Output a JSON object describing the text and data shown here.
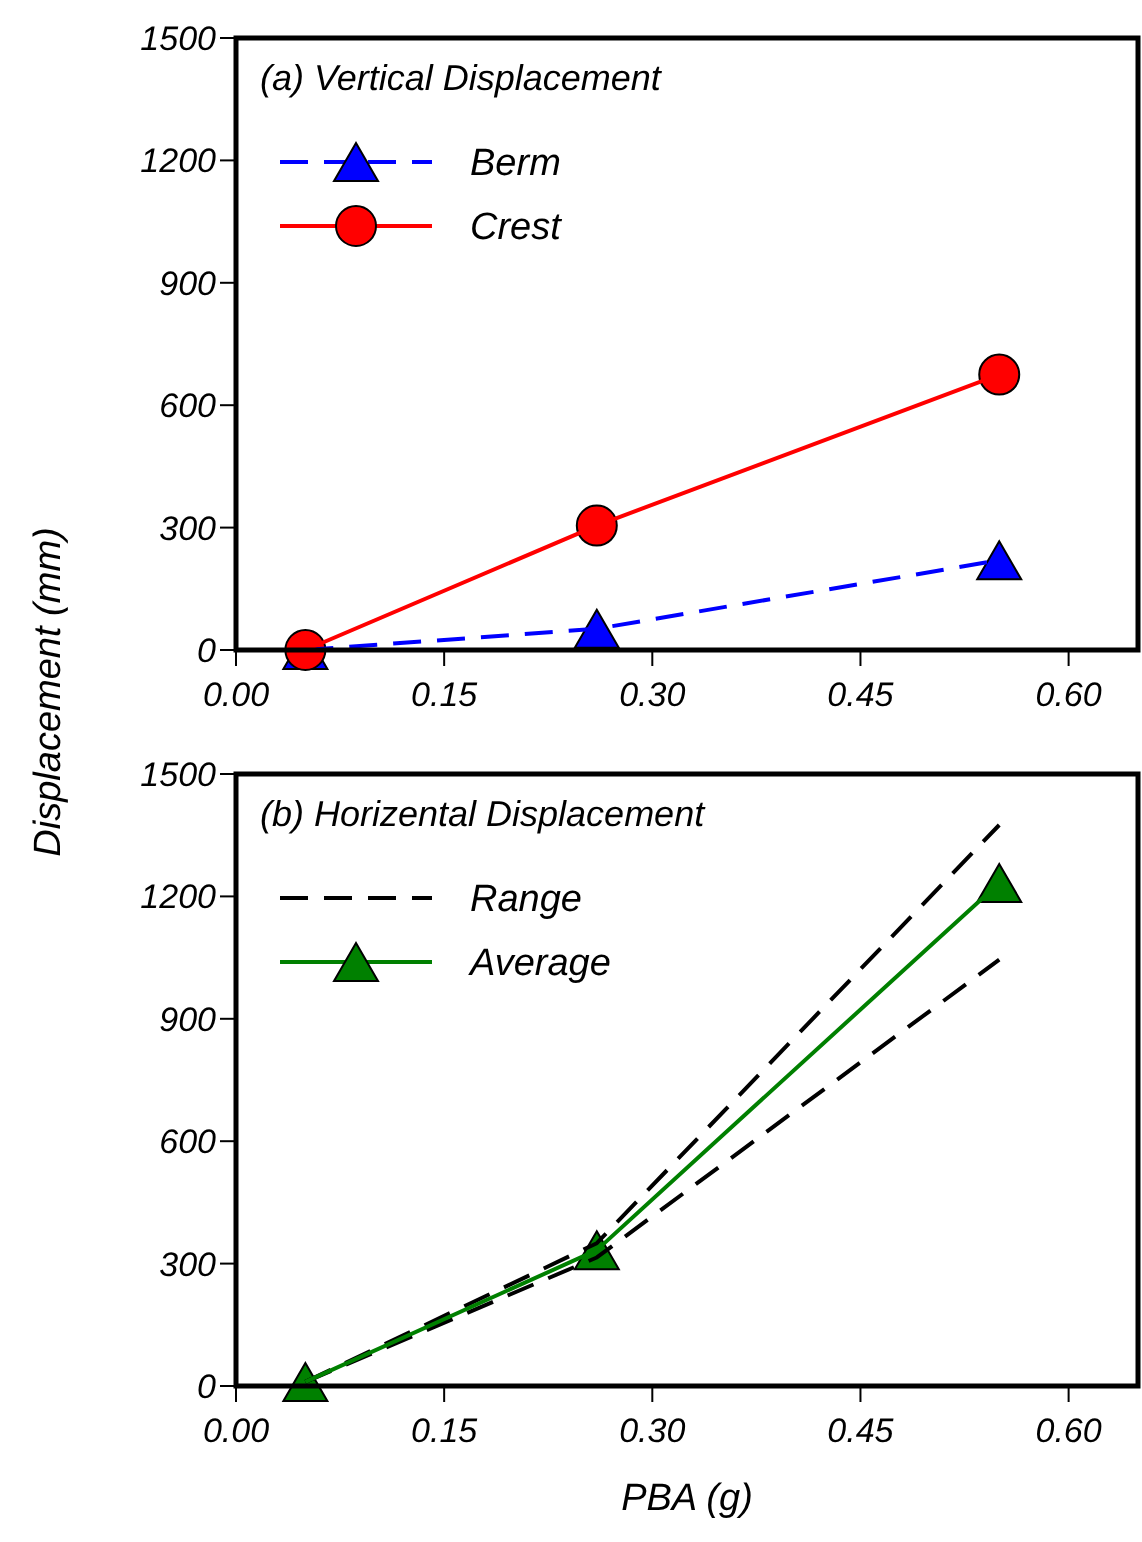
{
  "chart_data": [
    {
      "type": "line",
      "title": "(a) Vertical Displacement",
      "ylabel": "Displacement (mm)",
      "x": [
        0.05,
        0.26,
        0.55
      ],
      "xlim": [
        0,
        0.65
      ],
      "xticks": [
        {
          "value": 0,
          "label": "0.00"
        },
        {
          "value": 0.15,
          "label": "0.15"
        },
        {
          "value": 0.3,
          "label": "0.30"
        },
        {
          "value": 0.45,
          "label": "0.45"
        },
        {
          "value": 0.6,
          "label": "0.60"
        }
      ],
      "ylim": [
        0,
        1500
      ],
      "yticks": [
        0,
        300,
        600,
        900,
        1200,
        1500
      ],
      "grid": false,
      "legend": "top left",
      "series": [
        {
          "name": "Berm",
          "color": "#0000ff",
          "values": [
            0,
            52,
            220
          ],
          "marker": "triangle",
          "line_style": "dashed"
        },
        {
          "name": "Crest",
          "color": "#ff0000",
          "values": [
            0,
            305,
            675
          ],
          "marker": "circle",
          "line_style": "solid"
        }
      ]
    },
    {
      "type": "line",
      "title": "(b) Horizental Displacement",
      "xlabel": "PBA (g)",
      "x": [
        0.05,
        0.26,
        0.55
      ],
      "xlim": [
        0,
        0.65
      ],
      "xticks": [
        {
          "value": 0,
          "label": "0.00"
        },
        {
          "value": 0.15,
          "label": "0.15"
        },
        {
          "value": 0.3,
          "label": "0.30"
        },
        {
          "value": 0.45,
          "label": "0.45"
        },
        {
          "value": 0.6,
          "label": "0.60"
        }
      ],
      "ylim": [
        0,
        1500
      ],
      "yticks": [
        0,
        300,
        600,
        900,
        1200,
        1500
      ],
      "grid": false,
      "legend": "top left",
      "series": [
        {
          "name": "Range",
          "color": "#000000",
          "values": [
            10,
            350,
            1375
          ],
          "marker": "none",
          "line_style": "dashed"
        },
        {
          "color": "#000000",
          "values": [
            10,
            315,
            1045
          ],
          "marker": "none",
          "line_style": "dashed"
        },
        {
          "name": "Average",
          "color": "#008000",
          "values": [
            10,
            333,
            1233
          ],
          "marker": "triangle",
          "line_style": "solid"
        }
      ]
    }
  ]
}
